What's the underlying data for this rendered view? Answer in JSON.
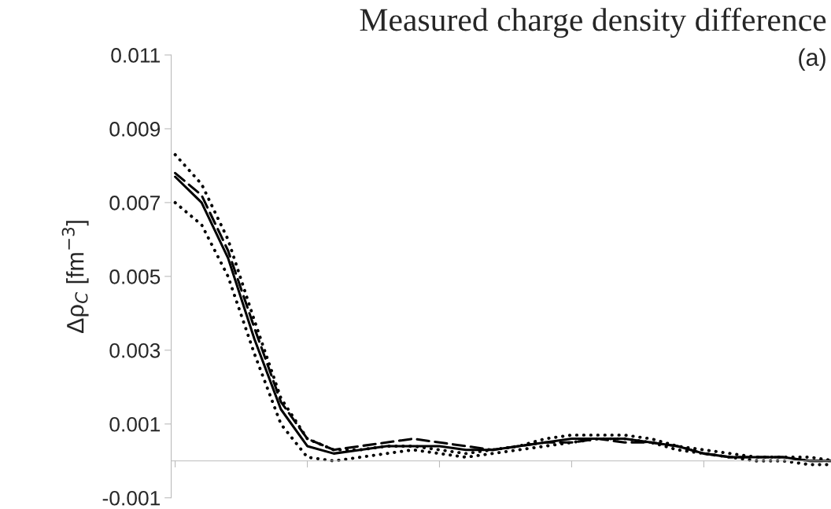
{
  "chart_data": {
    "type": "line",
    "title": "Measured charge density difference",
    "ylabel": "Δρ$_{C}$ [fm$^{−3}$]",
    "annotations": [
      "(a)"
    ],
    "categories": [
      null,
      null,
      null,
      null,
      null,
      null,
      null,
      null,
      null,
      null,
      null,
      null,
      null,
      null,
      null,
      null,
      null,
      null,
      null,
      null,
      null,
      null,
      null,
      null,
      null,
      null
    ],
    "series": [
      {
        "color": "#000000",
        "line_style": "solid",
        "values": [
          0.0077,
          0.007,
          0.0055,
          0.0033,
          0.0014,
          0.0004,
          0.0002,
          0.0003,
          0.0004,
          0.0004,
          0.0004,
          0.0003,
          0.0003,
          0.0004,
          0.0005,
          0.0006,
          0.0006,
          0.0006,
          0.0005,
          0.0004,
          0.0002,
          0.0001,
          0.0001,
          0.0001,
          0,
          0
        ]
      },
      {
        "color": "#000000",
        "line_style": "dashed",
        "values": [
          0.0078,
          0.0072,
          0.0057,
          0.0036,
          0.0016,
          0.0006,
          0.0003,
          0.0004,
          0.0005,
          0.0006,
          0.0005,
          0.0004,
          0.0003,
          0.0004,
          0.0005,
          0.0005,
          0.0006,
          0.0005,
          0.0005,
          0.0004,
          0.0002,
          0.0001,
          0.0001,
          0.0001,
          0,
          0
        ]
      },
      {
        "color": "#000000",
        "line_style": "dotted",
        "values": [
          0.0083,
          0.0075,
          0.006,
          0.0038,
          0.0017,
          0.0006,
          0.0003,
          0.0003,
          0.0004,
          0.0004,
          0.0003,
          0.0002,
          0.0003,
          0.0004,
          0.0006,
          0.0007,
          0.0007,
          0.0007,
          0.0006,
          0.0004,
          0.0003,
          0.0002,
          0.0001,
          0.0001,
          0.0001,
          0
        ]
      },
      {
        "color": "#000000",
        "line_style": "dotted",
        "values": [
          0.007,
          0.0064,
          0.005,
          0.0029,
          0.001,
          0.0001,
          0.0,
          0.0001,
          0.0002,
          0.0003,
          0.0002,
          0.0001,
          0.0002,
          0.0003,
          0.0004,
          0.0005,
          0.0006,
          0.0006,
          0.0005,
          0.0003,
          0.0002,
          0.0001,
          0,
          0,
          -0.0001,
          -0.0001
        ]
      }
    ],
    "ylim": [
      -0.001,
      0.011
    ],
    "yticks": [
      -0.001,
      0.001,
      0.003,
      0.005,
      0.007,
      0.009,
      0.011
    ],
    "tick_labels": "y",
    "grid": false,
    "legend": false
  }
}
